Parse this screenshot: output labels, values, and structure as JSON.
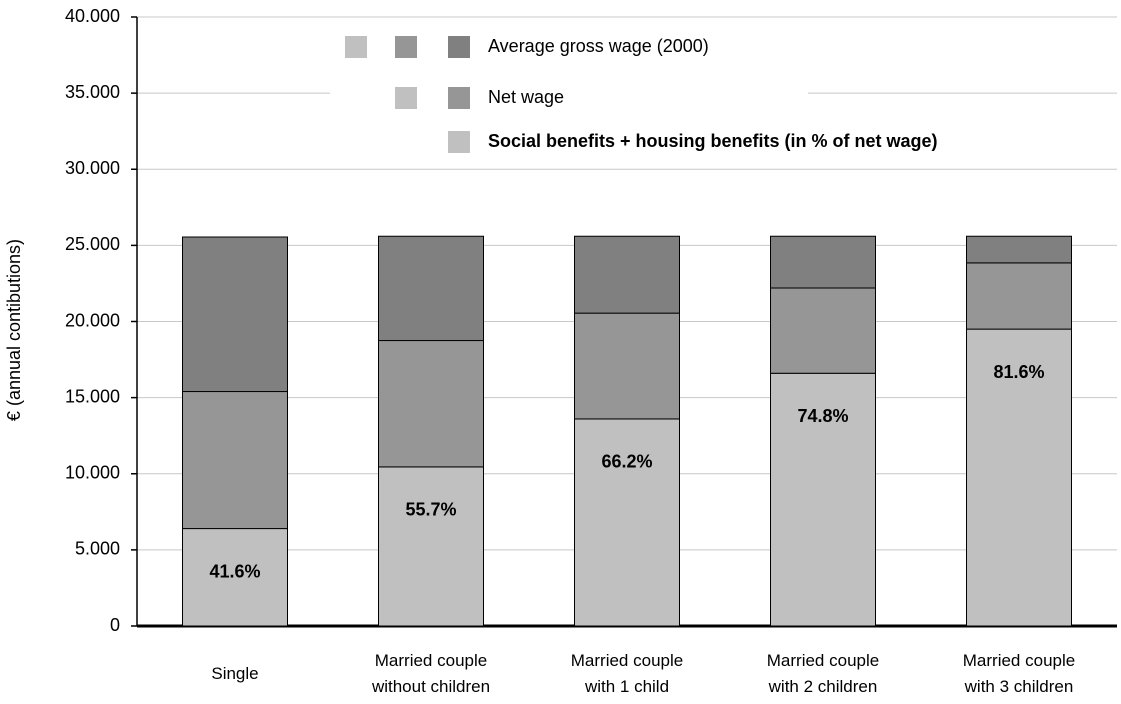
{
  "chart_data": {
    "type": "stacked_bar",
    "y_label": "€  (annual contibutions)",
    "categories": [
      "Single",
      "Married couple without children",
      "Married couple with 1 child",
      "Married couple with 2 children",
      "Married couple with 3 children"
    ],
    "series": [
      {
        "name": "Social benefits + housing benefits (in % of net wage)",
        "color": "#c0c0c0",
        "values": [
          6400,
          10450,
          13600,
          16600,
          19500
        ]
      },
      {
        "name": "Net wage",
        "color": "#969696",
        "values": [
          9000,
          8300,
          6950,
          5600,
          4350
        ]
      },
      {
        "name": "Average gross wage (2000)",
        "color": "#808080",
        "values": [
          10150,
          6850,
          5050,
          3400,
          1750
        ]
      }
    ],
    "annotations": [
      "41.6%",
      "55.7%",
      "66.2%",
      "74.8%",
      "81.6%"
    ],
    "ylim": [
      0,
      40000
    ],
    "yticks": [
      0,
      {
        "value": 5000,
        "label": "5.000"
      },
      {
        "value": 10000,
        "label": "10.000"
      },
      {
        "value": 15000,
        "label": "15.000"
      },
      {
        "value": 20000,
        "label": "20.000"
      },
      {
        "value": 25000,
        "label": "25.000"
      },
      {
        "value": 30000,
        "label": "30.000"
      },
      {
        "value": 35000,
        "label": "35.000"
      },
      {
        "value": 40000,
        "label": "40.000"
      }
    ],
    "grid": true
  }
}
